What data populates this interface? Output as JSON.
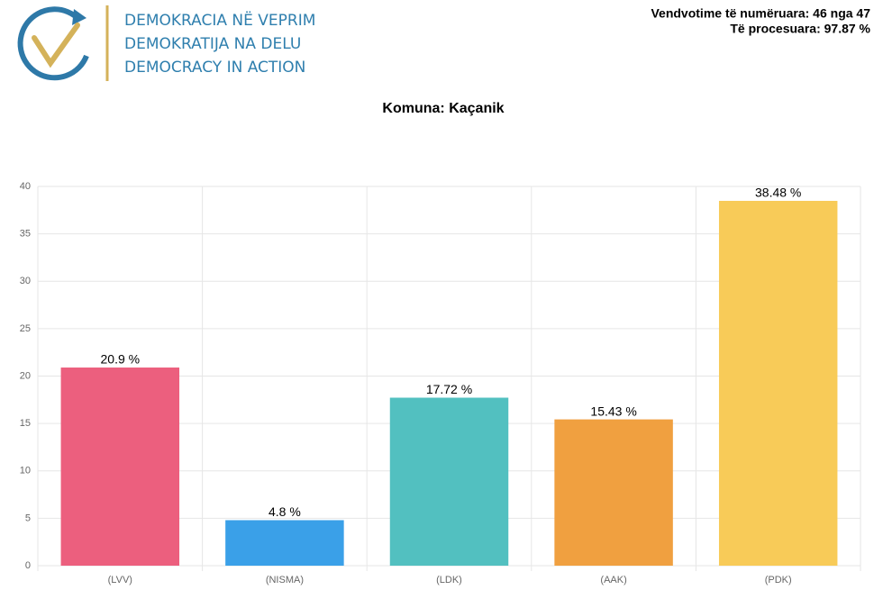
{
  "header": {
    "logo_lines": [
      "DEMOKRACIA NË VEPRIM",
      "DEMOKRATIJA NA DELU",
      "DEMOCRACY IN ACTION"
    ],
    "status_lines": [
      "Vendvotime të numëruara: 46 nga 47",
      "Të procesuara: 97.87 %"
    ]
  },
  "chart_data": {
    "type": "bar",
    "title": "Komuna: Kaçanik",
    "categories": [
      "(LVV)",
      "(NISMA)",
      "(LDK)",
      "(AAK)",
      "(PDK)"
    ],
    "values": [
      20.9,
      4.8,
      17.72,
      15.43,
      38.48
    ],
    "value_labels": [
      "20.9 %",
      "4.8 %",
      "17.72 %",
      "15.43 %",
      "38.48 %"
    ],
    "colors": [
      "#ec5f7e",
      "#3aa0e8",
      "#52c0c0",
      "#f0a040",
      "#f8cb58"
    ],
    "ylim": [
      0,
      40
    ],
    "yticks": [
      0,
      5,
      10,
      15,
      20,
      25,
      30,
      35,
      40
    ],
    "grid": true
  }
}
